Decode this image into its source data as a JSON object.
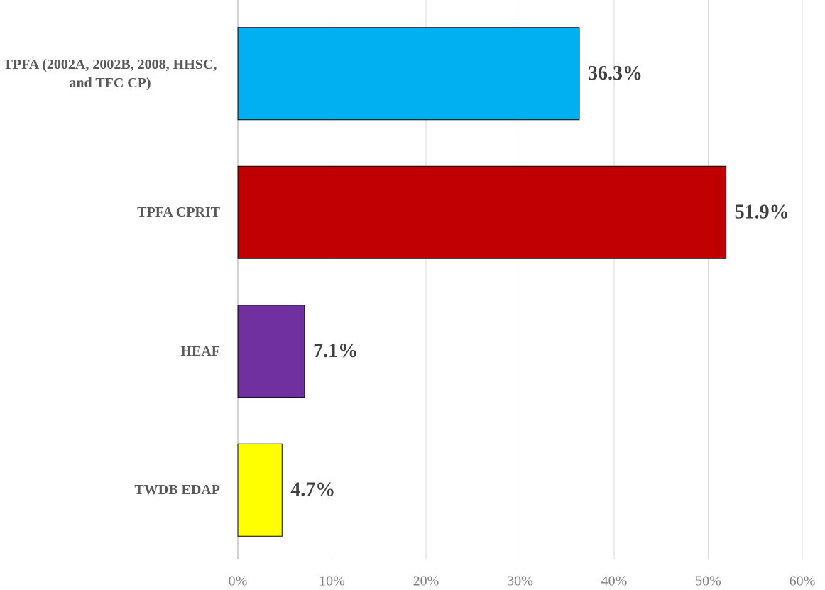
{
  "chart_data": {
    "type": "hbar",
    "categories": [
      "TPFA (2002A, 2002B, 2008, HHSC, and TFC CP)",
      "TPFA CPRIT",
      "HEAF",
      "TWDB EDAP"
    ],
    "values": [
      36.3,
      51.9,
      7.1,
      4.7
    ],
    "value_labels": [
      "36.3%",
      "51.9%",
      "7.1%",
      "4.7%"
    ],
    "colors": [
      "#00b0f0",
      "#c00000",
      "#7030a0",
      "#ffff00"
    ],
    "xlim": [
      0,
      60
    ],
    "xticks": [
      {
        "value": 0,
        "label": "0%"
      },
      {
        "value": 10,
        "label": "10%"
      },
      {
        "value": 20,
        "label": "20%"
      },
      {
        "value": 30,
        "label": "30%"
      },
      {
        "value": 40,
        "label": "40%"
      },
      {
        "value": 50,
        "label": "50%"
      },
      {
        "value": 60,
        "label": "60%"
      }
    ],
    "grid": true
  }
}
